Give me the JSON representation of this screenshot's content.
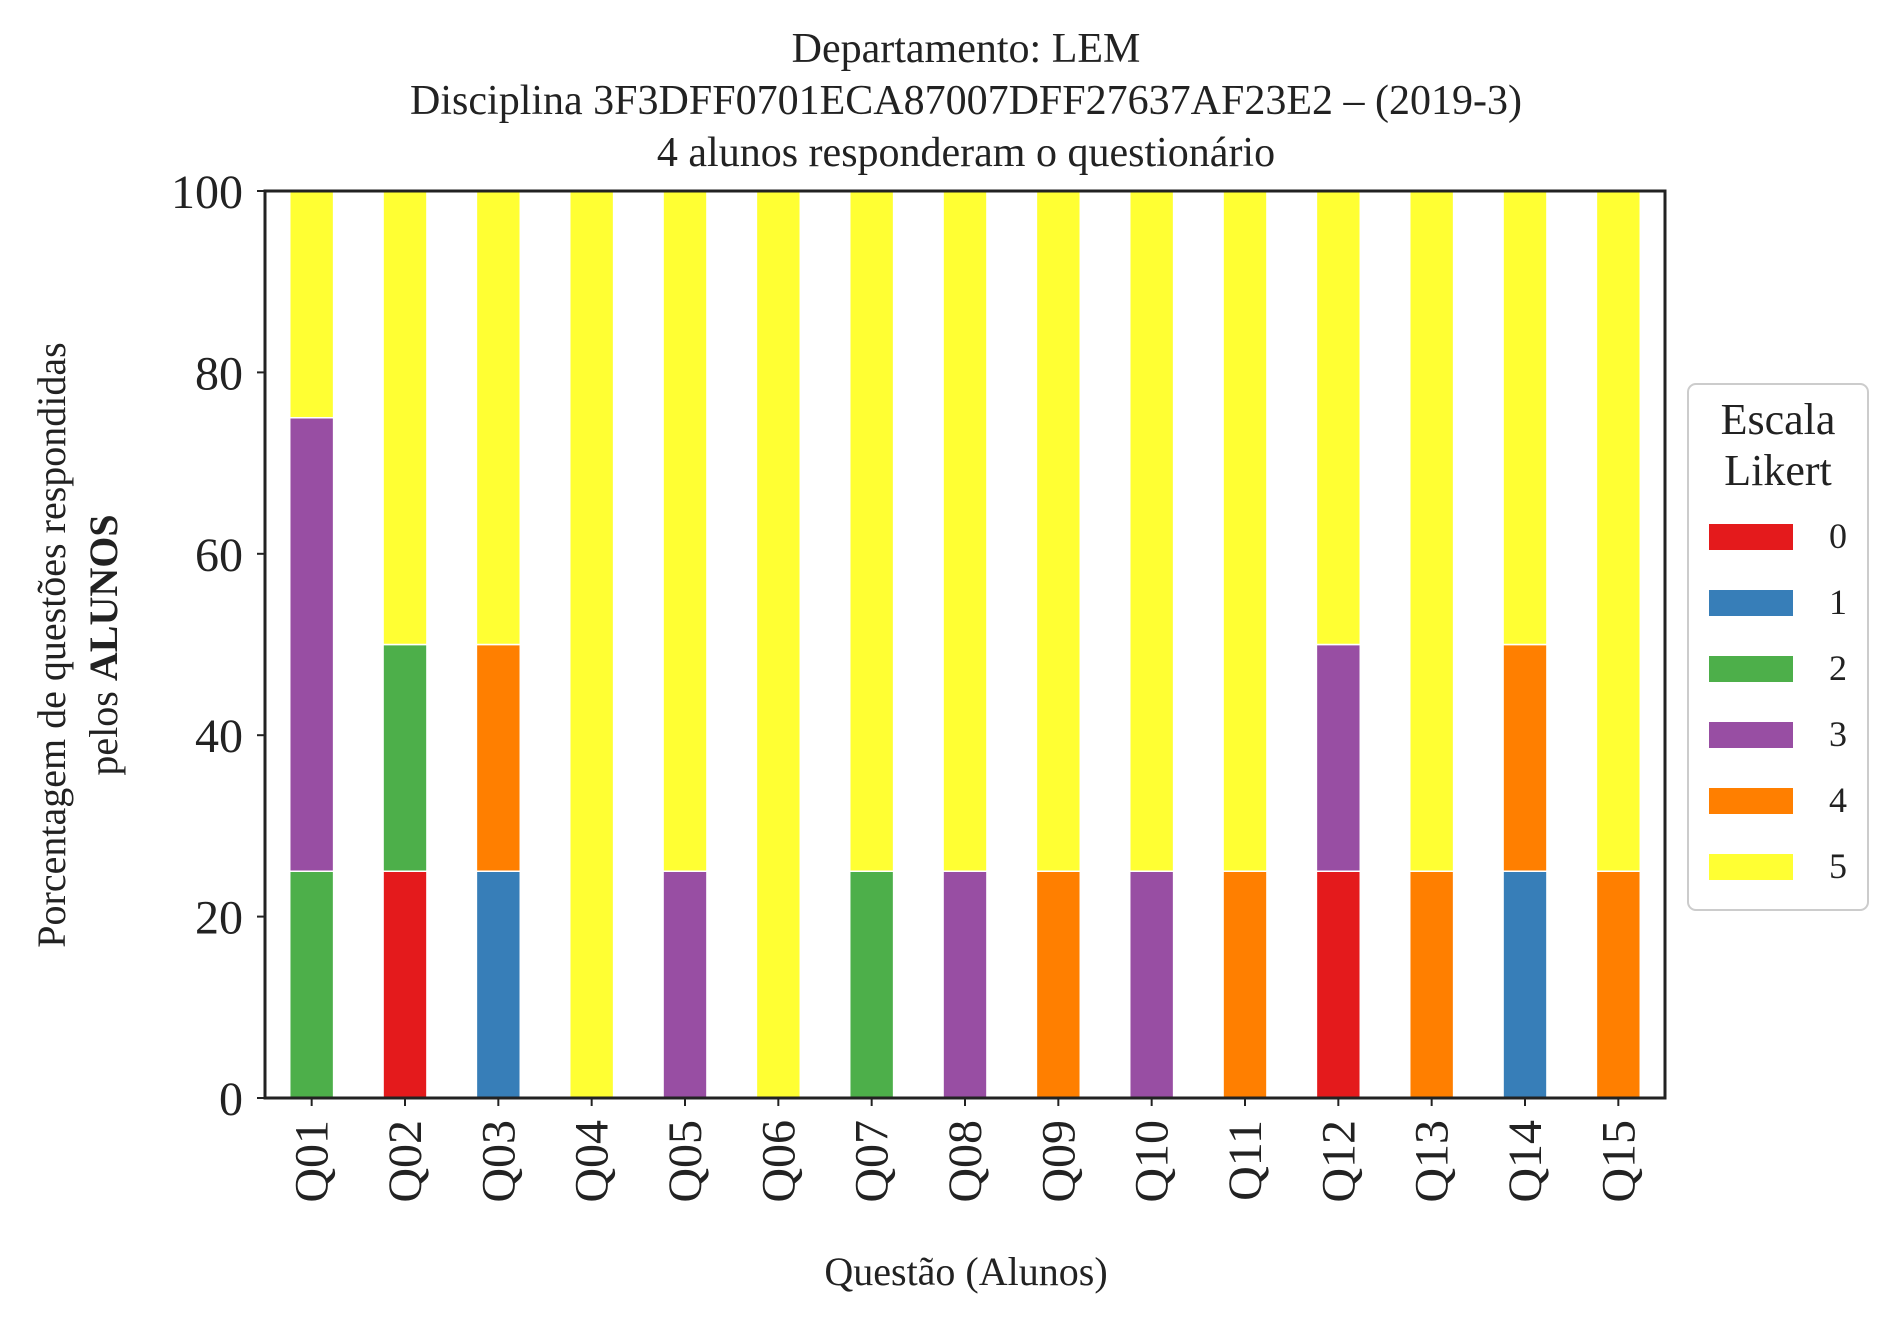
{
  "chart_data": {
    "type": "bar",
    "stacked": true,
    "title_lines": [
      "Departamento: LEM",
      "Disciplina 3F3DFF0701ECA87007DFF27637AF23E2 – (2019-3)",
      "4 alunos responderam o questionário"
    ],
    "xlabel": "Questão (Alunos)",
    "ylabel_line1": "Porcentagem de questões respondidas",
    "ylabel_line2_prefix": "pelos ",
    "ylabel_line2_bold": "ALUNOS",
    "ylim": [
      0,
      100
    ],
    "yticks": [
      "0",
      "20",
      "40",
      "60",
      "80",
      "100"
    ],
    "grid": false,
    "legend": {
      "title_lines": [
        "Escala",
        "Likert"
      ],
      "placement": "outside-right"
    },
    "categories": [
      "Q01",
      "Q02",
      "Q03",
      "Q04",
      "Q05",
      "Q06",
      "Q07",
      "Q08",
      "Q09",
      "Q10",
      "Q11",
      "Q12",
      "Q13",
      "Q14",
      "Q15"
    ],
    "series": [
      {
        "name": "0",
        "color": "#e41a1c",
        "values": [
          0,
          25,
          0,
          0,
          0,
          0,
          0,
          0,
          0,
          0,
          0,
          25,
          0,
          0,
          0
        ]
      },
      {
        "name": "1",
        "color": "#377eb8",
        "values": [
          0,
          0,
          25,
          0,
          0,
          0,
          0,
          0,
          0,
          0,
          0,
          0,
          0,
          25,
          0
        ]
      },
      {
        "name": "2",
        "color": "#4daf4a",
        "values": [
          25,
          25,
          0,
          0,
          0,
          0,
          25,
          0,
          0,
          0,
          0,
          0,
          0,
          0,
          0
        ]
      },
      {
        "name": "3",
        "color": "#984ea3",
        "values": [
          50,
          0,
          0,
          0,
          25,
          0,
          0,
          25,
          0,
          25,
          0,
          25,
          0,
          0,
          0
        ]
      },
      {
        "name": "4",
        "color": "#ff7f00",
        "values": [
          0,
          0,
          25,
          0,
          0,
          0,
          0,
          0,
          25,
          0,
          25,
          0,
          25,
          25,
          25
        ]
      },
      {
        "name": "5",
        "color": "#ffff33",
        "values": [
          25,
          50,
          50,
          100,
          75,
          100,
          75,
          75,
          75,
          75,
          75,
          50,
          75,
          50,
          75
        ]
      }
    ]
  }
}
